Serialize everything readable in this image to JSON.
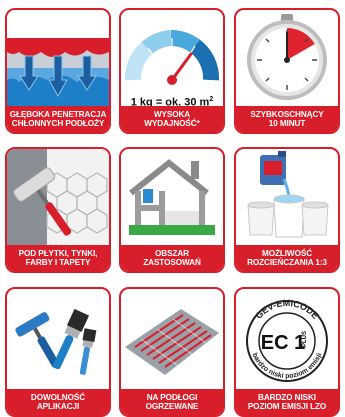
{
  "colors": {
    "accent": "#d81e2a",
    "caption_text": "#ffffff"
  },
  "tiles": [
    {
      "icon": "penetration-icon",
      "caption": [
        "GŁĘBOKA PENETRACJA",
        "CHŁONNYCH PODŁOŻY"
      ]
    },
    {
      "icon": "gauge-icon",
      "gauge_text": "1 kg = ok. 30 m",
      "gauge_unit_sup": "2",
      "caption": [
        "WYSOKA",
        "WYDAJNOŚĆ*"
      ]
    },
    {
      "icon": "stopwatch-icon",
      "caption": [
        "SZYBKOSCHNĄCY",
        "10 MINUT"
      ]
    },
    {
      "icon": "paint-roller-icon",
      "caption": [
        "POD PŁYTKI, TYNKI,",
        "FARBY I TAPETY"
      ]
    },
    {
      "icon": "house-icon",
      "caption": [
        "OBSZAR",
        "ZASTOSOWAŃ"
      ]
    },
    {
      "icon": "buckets-icon",
      "caption": [
        "MOŻLIWOŚĆ",
        "ROZCIEŃCZANIA 1:3"
      ]
    },
    {
      "icon": "brushes-icon",
      "caption": [
        "DOWOLNOŚĆ",
        "APLIKACJI"
      ]
    },
    {
      "icon": "floor-heating-icon",
      "caption": [
        "NA PODŁOGI",
        "OGRZEWANE"
      ]
    },
    {
      "icon": "emicode-seal-icon",
      "seal_top": "GEV-EMICODE",
      "seal_mark": "EC 1",
      "seal_plus": "PLUS",
      "seal_arc": "bardzo niski poziom emisji",
      "caption": [
        "BARDZO NISKI",
        "POZIOM EMISJI LZO"
      ]
    }
  ]
}
